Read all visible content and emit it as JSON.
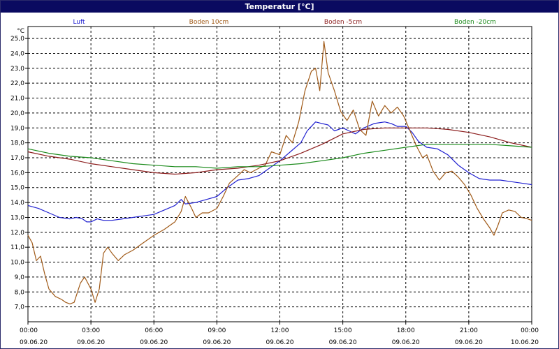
{
  "window": {
    "title": "Temperatur [°C]"
  },
  "chart_data": {
    "type": "line",
    "title": "Temperatur [°C]",
    "ylabel": "°C",
    "ylim": [
      6.0,
      25.8
    ],
    "ylim_note": "",
    "yticks": [
      "7,0",
      "8,0",
      "9,0",
      "10,0",
      "11,0",
      "12,0",
      "13,0",
      "14,0",
      "15,0",
      "16,0",
      "17,0",
      "18,0",
      "19,0",
      "20,0",
      "21,0",
      "22,0",
      "23,0",
      "24,0",
      "25,0"
    ],
    "ytick_values": [
      7,
      8,
      9,
      10,
      11,
      12,
      13,
      14,
      15,
      16,
      17,
      18,
      19,
      20,
      21,
      22,
      23,
      24,
      25
    ],
    "xlim_hours": [
      0,
      24
    ],
    "xticks": [
      {
        "h": 0,
        "time": "00:00",
        "date": "09.06.20"
      },
      {
        "h": 3,
        "time": "03:00",
        "date": "09.06.20"
      },
      {
        "h": 6,
        "time": "06:00",
        "date": "09.06.20"
      },
      {
        "h": 9,
        "time": "09:00",
        "date": "09.06.20"
      },
      {
        "h": 12,
        "time": "12:00",
        "date": "09.06.20"
      },
      {
        "h": 15,
        "time": "15:00",
        "date": "09.06.20"
      },
      {
        "h": 18,
        "time": "18:00",
        "date": "09.06.20"
      },
      {
        "h": 21,
        "time": "21:00",
        "date": "09.06.20"
      },
      {
        "h": 24,
        "time": "00:00",
        "date": "10.06.20"
      }
    ],
    "grid": true,
    "legend_position": "top",
    "series": [
      {
        "name": "Luft",
        "color": "#2020d0",
        "points": [
          [
            0,
            13.8
          ],
          [
            0.5,
            13.6
          ],
          [
            1,
            13.3
          ],
          [
            1.5,
            13.0
          ],
          [
            2,
            12.9
          ],
          [
            2.3,
            13.0
          ],
          [
            2.6,
            12.9
          ],
          [
            2.8,
            12.7
          ],
          [
            3,
            12.7
          ],
          [
            3.3,
            12.9
          ],
          [
            3.6,
            12.8
          ],
          [
            4,
            12.8
          ],
          [
            4.5,
            12.9
          ],
          [
            5,
            13.0
          ],
          [
            5.5,
            13.1
          ],
          [
            6,
            13.2
          ],
          [
            6.5,
            13.5
          ],
          [
            7,
            13.8
          ],
          [
            7.3,
            14.2
          ],
          [
            7.5,
            13.9
          ],
          [
            8,
            14.0
          ],
          [
            8.5,
            14.2
          ],
          [
            9,
            14.4
          ],
          [
            9.5,
            15.0
          ],
          [
            10,
            15.5
          ],
          [
            10.5,
            15.6
          ],
          [
            11,
            15.8
          ],
          [
            11.5,
            16.3
          ],
          [
            12,
            16.8
          ],
          [
            12.5,
            17.4
          ],
          [
            13,
            18.0
          ],
          [
            13.3,
            18.8
          ],
          [
            13.7,
            19.4
          ],
          [
            14,
            19.3
          ],
          [
            14.3,
            19.2
          ],
          [
            14.6,
            18.8
          ],
          [
            15,
            19.0
          ],
          [
            15.3,
            18.8
          ],
          [
            15.6,
            18.6
          ],
          [
            16,
            19.0
          ],
          [
            16.5,
            19.3
          ],
          [
            17,
            19.4
          ],
          [
            17.3,
            19.3
          ],
          [
            17.6,
            19.1
          ],
          [
            18,
            19.1
          ],
          [
            18.3,
            18.7
          ],
          [
            18.6,
            18.1
          ],
          [
            19,
            17.7
          ],
          [
            19.5,
            17.6
          ],
          [
            20,
            17.2
          ],
          [
            20.5,
            16.5
          ],
          [
            21,
            16.0
          ],
          [
            21.5,
            15.6
          ],
          [
            22,
            15.5
          ],
          [
            22.5,
            15.5
          ],
          [
            23,
            15.4
          ],
          [
            23.5,
            15.3
          ],
          [
            24,
            15.2
          ]
        ]
      },
      {
        "name": "Boden 10cm",
        "color": "#a05a18",
        "points": [
          [
            0,
            11.8
          ],
          [
            0.2,
            11.3
          ],
          [
            0.4,
            10.1
          ],
          [
            0.6,
            10.4
          ],
          [
            0.8,
            9.2
          ],
          [
            1,
            8.2
          ],
          [
            1.3,
            7.7
          ],
          [
            1.6,
            7.5
          ],
          [
            1.8,
            7.3
          ],
          [
            2,
            7.2
          ],
          [
            2.2,
            7.3
          ],
          [
            2.5,
            8.6
          ],
          [
            2.7,
            9.0
          ],
          [
            3,
            8.2
          ],
          [
            3.2,
            7.3
          ],
          [
            3.4,
            8.2
          ],
          [
            3.6,
            10.6
          ],
          [
            3.8,
            11.0
          ],
          [
            4,
            10.6
          ],
          [
            4.3,
            10.1
          ],
          [
            4.6,
            10.5
          ],
          [
            5,
            10.8
          ],
          [
            5.5,
            11.3
          ],
          [
            6,
            11.8
          ],
          [
            6.5,
            12.2
          ],
          [
            7,
            12.7
          ],
          [
            7.3,
            13.4
          ],
          [
            7.5,
            14.4
          ],
          [
            7.8,
            13.6
          ],
          [
            8,
            13.0
          ],
          [
            8.3,
            13.3
          ],
          [
            8.6,
            13.3
          ],
          [
            9,
            13.6
          ],
          [
            9.3,
            14.4
          ],
          [
            9.6,
            15.3
          ],
          [
            10,
            15.8
          ],
          [
            10.3,
            16.2
          ],
          [
            10.6,
            16.0
          ],
          [
            11,
            16.3
          ],
          [
            11.3,
            16.5
          ],
          [
            11.6,
            17.4
          ],
          [
            12,
            17.2
          ],
          [
            12.3,
            18.5
          ],
          [
            12.6,
            18.0
          ],
          [
            12.9,
            19.4
          ],
          [
            13.2,
            21.5
          ],
          [
            13.5,
            22.8
          ],
          [
            13.7,
            23.0
          ],
          [
            13.9,
            21.5
          ],
          [
            14.1,
            24.8
          ],
          [
            14.3,
            22.7
          ],
          [
            14.6,
            21.5
          ],
          [
            14.9,
            20.1
          ],
          [
            15.2,
            19.5
          ],
          [
            15.5,
            20.2
          ],
          [
            15.8,
            18.9
          ],
          [
            16.1,
            18.5
          ],
          [
            16.4,
            20.8
          ],
          [
            16.7,
            19.8
          ],
          [
            17,
            20.5
          ],
          [
            17.3,
            20.0
          ],
          [
            17.6,
            20.4
          ],
          [
            17.9,
            19.8
          ],
          [
            18.2,
            18.8
          ],
          [
            18.5,
            17.8
          ],
          [
            18.8,
            17.0
          ],
          [
            19,
            17.2
          ],
          [
            19.3,
            16.1
          ],
          [
            19.6,
            15.5
          ],
          [
            19.9,
            16.0
          ],
          [
            20.2,
            16.1
          ],
          [
            20.5,
            15.7
          ],
          [
            20.8,
            15.2
          ],
          [
            21.1,
            14.5
          ],
          [
            21.4,
            13.6
          ],
          [
            21.7,
            12.9
          ],
          [
            22,
            12.3
          ],
          [
            22.2,
            11.8
          ],
          [
            22.4,
            12.5
          ],
          [
            22.6,
            13.3
          ],
          [
            22.9,
            13.5
          ],
          [
            23.2,
            13.4
          ],
          [
            23.5,
            13.0
          ],
          [
            23.8,
            12.9
          ],
          [
            24,
            12.8
          ]
        ]
      },
      {
        "name": "Boden -5cm",
        "color": "#8b1c1c",
        "points": [
          [
            0,
            17.4
          ],
          [
            1,
            17.1
          ],
          [
            2,
            16.9
          ],
          [
            3,
            16.6
          ],
          [
            4,
            16.4
          ],
          [
            5,
            16.2
          ],
          [
            6,
            16.0
          ],
          [
            7,
            15.9
          ],
          [
            8,
            16.0
          ],
          [
            9,
            16.2
          ],
          [
            10,
            16.3
          ],
          [
            11,
            16.5
          ],
          [
            12,
            16.8
          ],
          [
            13,
            17.3
          ],
          [
            14,
            17.9
          ],
          [
            15,
            18.6
          ],
          [
            16,
            18.9
          ],
          [
            17,
            19.0
          ],
          [
            18,
            19.0
          ],
          [
            19,
            19.0
          ],
          [
            20,
            18.9
          ],
          [
            21,
            18.7
          ],
          [
            22,
            18.4
          ],
          [
            23,
            18.0
          ],
          [
            24,
            17.7
          ]
        ]
      },
      {
        "name": "Boden -20cm",
        "color": "#1a8a1a",
        "points": [
          [
            0,
            17.6
          ],
          [
            1,
            17.3
          ],
          [
            2,
            17.1
          ],
          [
            3,
            17.0
          ],
          [
            4,
            16.8
          ],
          [
            5,
            16.6
          ],
          [
            6,
            16.5
          ],
          [
            7,
            16.4
          ],
          [
            8,
            16.4
          ],
          [
            9,
            16.3
          ],
          [
            10,
            16.4
          ],
          [
            11,
            16.4
          ],
          [
            12,
            16.5
          ],
          [
            13,
            16.6
          ],
          [
            14,
            16.8
          ],
          [
            15,
            17.0
          ],
          [
            16,
            17.3
          ],
          [
            17,
            17.5
          ],
          [
            18,
            17.7
          ],
          [
            19,
            17.9
          ],
          [
            20,
            17.9
          ],
          [
            21,
            17.9
          ],
          [
            22,
            17.9
          ],
          [
            23,
            17.8
          ],
          [
            24,
            17.7
          ]
        ]
      }
    ]
  }
}
